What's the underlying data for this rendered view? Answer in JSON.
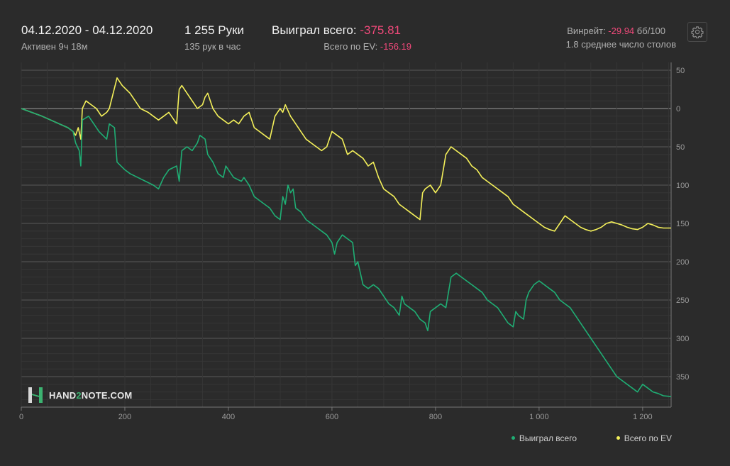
{
  "header": {
    "date_range": "04.12.2020 - 04.12.2020",
    "active": "Активен 9ч 18м",
    "hands": "1 255 Руки",
    "hands_per_hour": "135 рук в час",
    "won_label": "Выиграл всего:",
    "won_value": "-375.81",
    "ev_label": "Всего по EV:",
    "ev_value": "-156.19",
    "winrate_label": "Винрейт:",
    "winrate_value": "-29.94",
    "winrate_unit": "бб/100",
    "tables": "1.8 среднее число столов",
    "settings_icon": "gear-icon"
  },
  "logo": {
    "text_a": "HAND",
    "text_b": "2",
    "text_c": "NOTE.COM"
  },
  "colors": {
    "won": "#1fae74",
    "ev": "#f4f05a",
    "negative": "#f0497a"
  },
  "chart_data": {
    "type": "line",
    "xlim": [
      0,
      1255
    ],
    "ylim": [
      -380,
      50
    ],
    "x_ticks": [
      0,
      200,
      400,
      600,
      800,
      1000,
      1200
    ],
    "x_tick_labels": [
      "0",
      "200",
      "400",
      "600",
      "800",
      "1 000",
      "1 200"
    ],
    "y_ticks": [
      50,
      0,
      -50,
      -100,
      -150,
      -200,
      -250,
      -300,
      -350
    ],
    "y_tick_labels": [
      "50",
      "0",
      "50",
      "100",
      "150",
      "200",
      "250",
      "300",
      "350"
    ],
    "grid": true,
    "legend_position": "bottom-right",
    "series": [
      {
        "name": "Выиграл всего",
        "color": "#1fae74",
        "points": [
          [
            0,
            0
          ],
          [
            40,
            -10
          ],
          [
            90,
            -25
          ],
          [
            100,
            -30
          ],
          [
            105,
            -45
          ],
          [
            112,
            -55
          ],
          [
            115,
            -75
          ],
          [
            118,
            -15
          ],
          [
            130,
            -10
          ],
          [
            140,
            -20
          ],
          [
            150,
            -30
          ],
          [
            165,
            -40
          ],
          [
            170,
            -20
          ],
          [
            180,
            -25
          ],
          [
            185,
            -70
          ],
          [
            200,
            -80
          ],
          [
            210,
            -85
          ],
          [
            225,
            -90
          ],
          [
            240,
            -95
          ],
          [
            255,
            -100
          ],
          [
            265,
            -105
          ],
          [
            275,
            -90
          ],
          [
            285,
            -80
          ],
          [
            300,
            -75
          ],
          [
            305,
            -95
          ],
          [
            310,
            -55
          ],
          [
            320,
            -50
          ],
          [
            330,
            -55
          ],
          [
            340,
            -45
          ],
          [
            345,
            -35
          ],
          [
            355,
            -40
          ],
          [
            360,
            -60
          ],
          [
            370,
            -70
          ],
          [
            380,
            -85
          ],
          [
            390,
            -90
          ],
          [
            395,
            -75
          ],
          [
            400,
            -80
          ],
          [
            410,
            -90
          ],
          [
            425,
            -95
          ],
          [
            430,
            -90
          ],
          [
            440,
            -100
          ],
          [
            450,
            -115
          ],
          [
            460,
            -120
          ],
          [
            470,
            -125
          ],
          [
            480,
            -130
          ],
          [
            490,
            -140
          ],
          [
            500,
            -145
          ],
          [
            505,
            -115
          ],
          [
            510,
            -125
          ],
          [
            515,
            -100
          ],
          [
            520,
            -110
          ],
          [
            525,
            -105
          ],
          [
            530,
            -130
          ],
          [
            540,
            -135
          ],
          [
            550,
            -145
          ],
          [
            560,
            -150
          ],
          [
            570,
            -155
          ],
          [
            580,
            -160
          ],
          [
            590,
            -165
          ],
          [
            600,
            -175
          ],
          [
            605,
            -190
          ],
          [
            610,
            -175
          ],
          [
            620,
            -165
          ],
          [
            630,
            -170
          ],
          [
            640,
            -175
          ],
          [
            645,
            -205
          ],
          [
            650,
            -200
          ],
          [
            660,
            -230
          ],
          [
            670,
            -235
          ],
          [
            680,
            -230
          ],
          [
            690,
            -235
          ],
          [
            700,
            -245
          ],
          [
            710,
            -255
          ],
          [
            720,
            -260
          ],
          [
            730,
            -270
          ],
          [
            735,
            -245
          ],
          [
            740,
            -255
          ],
          [
            750,
            -260
          ],
          [
            760,
            -265
          ],
          [
            770,
            -275
          ],
          [
            780,
            -280
          ],
          [
            785,
            -290
          ],
          [
            790,
            -265
          ],
          [
            800,
            -260
          ],
          [
            810,
            -255
          ],
          [
            820,
            -260
          ],
          [
            830,
            -220
          ],
          [
            840,
            -215
          ],
          [
            850,
            -220
          ],
          [
            860,
            -225
          ],
          [
            870,
            -230
          ],
          [
            880,
            -235
          ],
          [
            890,
            -240
          ],
          [
            900,
            -250
          ],
          [
            910,
            -255
          ],
          [
            920,
            -260
          ],
          [
            930,
            -270
          ],
          [
            940,
            -280
          ],
          [
            950,
            -285
          ],
          [
            955,
            -265
          ],
          [
            960,
            -270
          ],
          [
            970,
            -275
          ],
          [
            975,
            -250
          ],
          [
            980,
            -240
          ],
          [
            990,
            -230
          ],
          [
            1000,
            -225
          ],
          [
            1010,
            -230
          ],
          [
            1020,
            -235
          ],
          [
            1030,
            -240
          ],
          [
            1040,
            -250
          ],
          [
            1050,
            -255
          ],
          [
            1060,
            -260
          ],
          [
            1070,
            -270
          ],
          [
            1080,
            -280
          ],
          [
            1090,
            -290
          ],
          [
            1100,
            -300
          ],
          [
            1110,
            -310
          ],
          [
            1120,
            -320
          ],
          [
            1130,
            -330
          ],
          [
            1140,
            -340
          ],
          [
            1150,
            -350
          ],
          [
            1160,
            -355
          ],
          [
            1170,
            -360
          ],
          [
            1180,
            -365
          ],
          [
            1190,
            -370
          ],
          [
            1200,
            -360
          ],
          [
            1210,
            -365
          ],
          [
            1220,
            -370
          ],
          [
            1230,
            -372
          ],
          [
            1240,
            -375
          ],
          [
            1255,
            -376
          ]
        ]
      },
      {
        "name": "Всего по EV",
        "color": "#f4f05a",
        "points": [
          [
            0,
            0
          ],
          [
            40,
            -10
          ],
          [
            90,
            -25
          ],
          [
            100,
            -30
          ],
          [
            105,
            -35
          ],
          [
            110,
            -25
          ],
          [
            115,
            -40
          ],
          [
            118,
            0
          ],
          [
            125,
            10
          ],
          [
            135,
            5
          ],
          [
            145,
            0
          ],
          [
            155,
            -10
          ],
          [
            165,
            -5
          ],
          [
            170,
            0
          ],
          [
            185,
            40
          ],
          [
            195,
            30
          ],
          [
            210,
            20
          ],
          [
            220,
            10
          ],
          [
            230,
            0
          ],
          [
            245,
            -5
          ],
          [
            255,
            -10
          ],
          [
            265,
            -15
          ],
          [
            275,
            -10
          ],
          [
            285,
            -5
          ],
          [
            300,
            -20
          ],
          [
            305,
            25
          ],
          [
            310,
            30
          ],
          [
            320,
            20
          ],
          [
            330,
            10
          ],
          [
            340,
            0
          ],
          [
            350,
            5
          ],
          [
            355,
            15
          ],
          [
            360,
            20
          ],
          [
            370,
            0
          ],
          [
            380,
            -10
          ],
          [
            390,
            -15
          ],
          [
            400,
            -20
          ],
          [
            410,
            -15
          ],
          [
            420,
            -20
          ],
          [
            430,
            -10
          ],
          [
            440,
            -5
          ],
          [
            450,
            -25
          ],
          [
            460,
            -30
          ],
          [
            470,
            -35
          ],
          [
            480,
            -40
          ],
          [
            490,
            -10
          ],
          [
            500,
            0
          ],
          [
            505,
            -5
          ],
          [
            510,
            5
          ],
          [
            520,
            -10
          ],
          [
            530,
            -20
          ],
          [
            540,
            -30
          ],
          [
            550,
            -40
          ],
          [
            560,
            -45
          ],
          [
            570,
            -50
          ],
          [
            580,
            -55
          ],
          [
            590,
            -50
          ],
          [
            600,
            -30
          ],
          [
            610,
            -35
          ],
          [
            620,
            -40
          ],
          [
            630,
            -60
          ],
          [
            640,
            -55
          ],
          [
            650,
            -60
          ],
          [
            660,
            -65
          ],
          [
            670,
            -75
          ],
          [
            680,
            -70
          ],
          [
            690,
            -90
          ],
          [
            700,
            -105
          ],
          [
            710,
            -110
          ],
          [
            720,
            -115
          ],
          [
            730,
            -125
          ],
          [
            740,
            -130
          ],
          [
            750,
            -135
          ],
          [
            760,
            -140
          ],
          [
            770,
            -145
          ],
          [
            775,
            -110
          ],
          [
            780,
            -105
          ],
          [
            790,
            -100
          ],
          [
            800,
            -110
          ],
          [
            810,
            -100
          ],
          [
            820,
            -60
          ],
          [
            830,
            -50
          ],
          [
            840,
            -55
          ],
          [
            850,
            -60
          ],
          [
            860,
            -65
          ],
          [
            870,
            -75
          ],
          [
            880,
            -80
          ],
          [
            890,
            -90
          ],
          [
            900,
            -95
          ],
          [
            910,
            -100
          ],
          [
            920,
            -105
          ],
          [
            930,
            -110
          ],
          [
            940,
            -115
          ],
          [
            950,
            -125
          ],
          [
            960,
            -130
          ],
          [
            970,
            -135
          ],
          [
            980,
            -140
          ],
          [
            990,
            -145
          ],
          [
            1000,
            -150
          ],
          [
            1010,
            -155
          ],
          [
            1020,
            -158
          ],
          [
            1030,
            -160
          ],
          [
            1040,
            -150
          ],
          [
            1050,
            -140
          ],
          [
            1060,
            -145
          ],
          [
            1070,
            -150
          ],
          [
            1080,
            -155
          ],
          [
            1090,
            -158
          ],
          [
            1100,
            -160
          ],
          [
            1110,
            -158
          ],
          [
            1120,
            -155
          ],
          [
            1130,
            -150
          ],
          [
            1140,
            -148
          ],
          [
            1150,
            -150
          ],
          [
            1160,
            -152
          ],
          [
            1170,
            -155
          ],
          [
            1180,
            -157
          ],
          [
            1190,
            -158
          ],
          [
            1200,
            -155
          ],
          [
            1210,
            -150
          ],
          [
            1220,
            -152
          ],
          [
            1230,
            -155
          ],
          [
            1240,
            -156
          ],
          [
            1255,
            -156
          ]
        ]
      }
    ]
  }
}
